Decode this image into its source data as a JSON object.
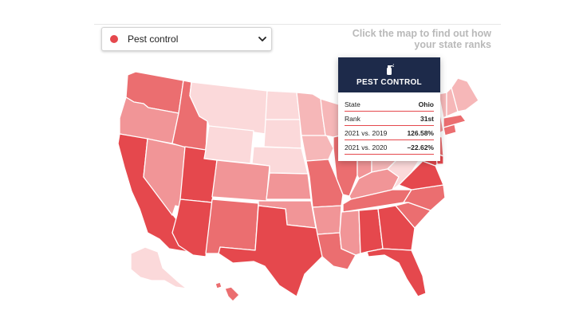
{
  "dropdown": {
    "selected": "Pest control",
    "dot_color": "#e5484d"
  },
  "hint": {
    "line1": "Click the map to find out how",
    "line2": "your state ranks"
  },
  "tooltip": {
    "icon": "spray-bottle-icon",
    "title": "PEST CONTROL",
    "rows": [
      {
        "key": "State",
        "value": "Ohio"
      },
      {
        "key": "Rank",
        "value": "31st"
      },
      {
        "key": "2021 vs. 2019",
        "value": "126.58%"
      },
      {
        "key": "2021 vs. 2020",
        "value": "–22.62%"
      }
    ]
  },
  "colors": {
    "darkest": "#e5484d",
    "dark": "#eb6e70",
    "medium": "#f19597",
    "light": "#f6b7b8",
    "lightest": "#fbd9da",
    "tooltip_header": "#1d2a4a"
  },
  "map": {
    "states": [
      {
        "name": "WA",
        "shade": "dark"
      },
      {
        "name": "OR",
        "shade": "medium"
      },
      {
        "name": "CA",
        "shade": "darkest"
      },
      {
        "name": "NV",
        "shade": "medium"
      },
      {
        "name": "ID",
        "shade": "dark"
      },
      {
        "name": "MT",
        "shade": "lightest"
      },
      {
        "name": "WY",
        "shade": "lightest"
      },
      {
        "name": "UT",
        "shade": "darkest"
      },
      {
        "name": "AZ",
        "shade": "darkest"
      },
      {
        "name": "CO",
        "shade": "medium"
      },
      {
        "name": "NM",
        "shade": "dark"
      },
      {
        "name": "ND",
        "shade": "lightest"
      },
      {
        "name": "SD",
        "shade": "lightest"
      },
      {
        "name": "NE",
        "shade": "lightest"
      },
      {
        "name": "KS",
        "shade": "medium"
      },
      {
        "name": "OK",
        "shade": "medium"
      },
      {
        "name": "TX",
        "shade": "darkest"
      },
      {
        "name": "MN",
        "shade": "light"
      },
      {
        "name": "IA",
        "shade": "light"
      },
      {
        "name": "MO",
        "shade": "dark"
      },
      {
        "name": "AR",
        "shade": "medium"
      },
      {
        "name": "LA",
        "shade": "dark"
      },
      {
        "name": "WI",
        "shade": "light"
      },
      {
        "name": "IL",
        "shade": "dark"
      },
      {
        "name": "MI",
        "shade": "light"
      },
      {
        "name": "IN",
        "shade": "medium"
      },
      {
        "name": "OH",
        "shade": "light"
      },
      {
        "name": "KY",
        "shade": "medium"
      },
      {
        "name": "TN",
        "shade": "dark"
      },
      {
        "name": "MS",
        "shade": "medium"
      },
      {
        "name": "AL",
        "shade": "darkest"
      },
      {
        "name": "GA",
        "shade": "darkest"
      },
      {
        "name": "FL",
        "shade": "darkest"
      },
      {
        "name": "SC",
        "shade": "dark"
      },
      {
        "name": "NC",
        "shade": "dark"
      },
      {
        "name": "VA",
        "shade": "darkest"
      },
      {
        "name": "WV",
        "shade": "lightest"
      },
      {
        "name": "PA",
        "shade": "light"
      },
      {
        "name": "NY",
        "shade": "medium"
      },
      {
        "name": "VT",
        "shade": "light"
      },
      {
        "name": "NH",
        "shade": "light"
      },
      {
        "name": "ME",
        "shade": "light"
      },
      {
        "name": "MA",
        "shade": "dark"
      },
      {
        "name": "CT",
        "shade": "dark"
      },
      {
        "name": "NJ",
        "shade": "dark"
      },
      {
        "name": "DE",
        "shade": "darkest"
      },
      {
        "name": "MD",
        "shade": "darkest"
      },
      {
        "name": "AK",
        "shade": "lightest"
      },
      {
        "name": "HI",
        "shade": "dark"
      }
    ]
  }
}
